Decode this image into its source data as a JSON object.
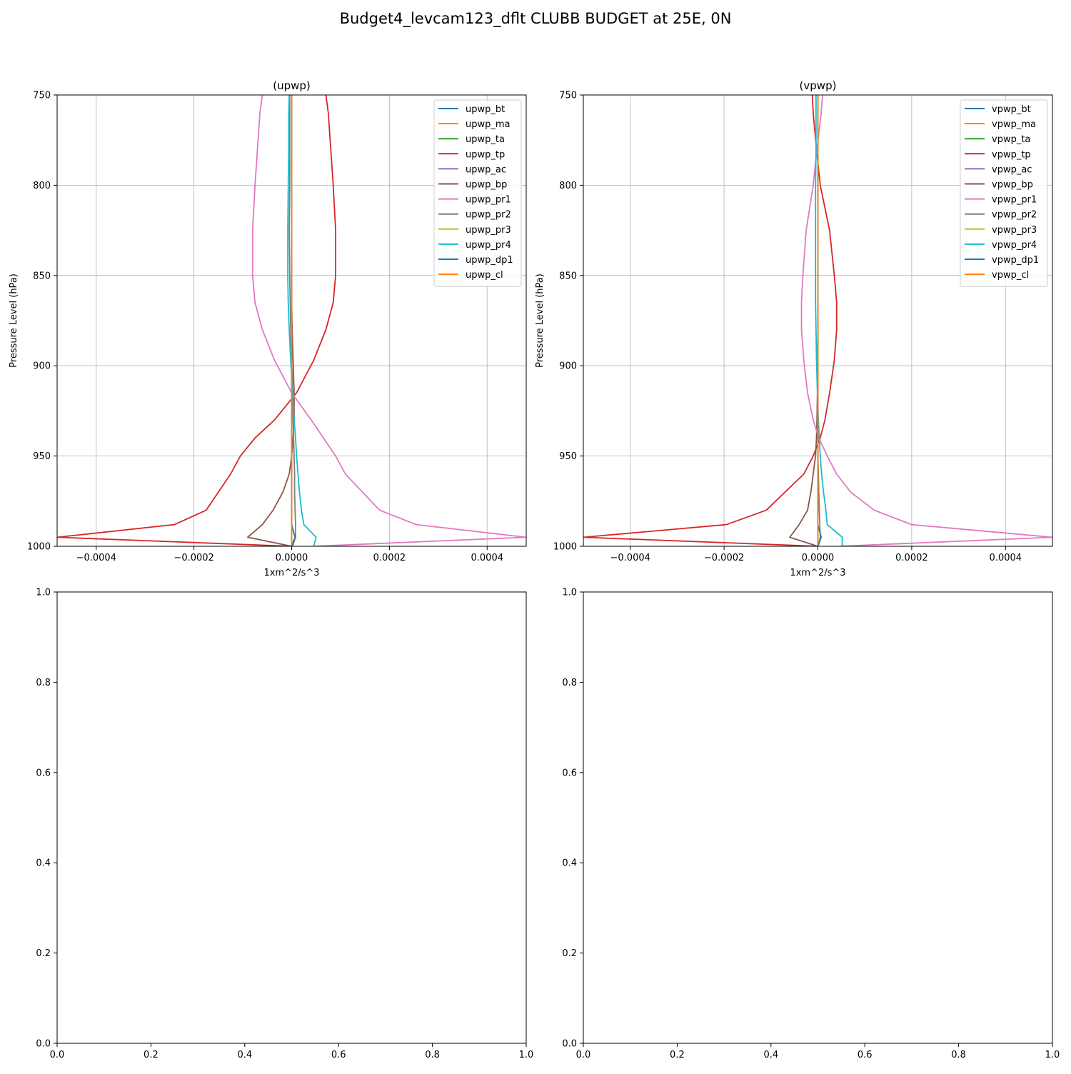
{
  "figure": {
    "suptitle": "Budget4_levcam123_dflt CLUBB BUDGET at 25E, 0N"
  },
  "chart_data": [
    {
      "type": "line",
      "title": "(upwp)",
      "xlabel": "1xm^2/s^3",
      "ylabel": "Pressure Level (hPa)",
      "xlim": [
        -0.00048,
        0.00048
      ],
      "ylim": [
        1000,
        750
      ],
      "y_inverted": true,
      "grid": true,
      "legend": "top-right",
      "xticks": [
        "−0.0004",
        "−0.0002",
        "0.0000",
        "0.0002",
        "0.0004"
      ],
      "xtick_values": [
        -0.0004,
        -0.0002,
        0,
        0.0002,
        0.0004
      ],
      "yticks": [
        "750",
        "800",
        "850",
        "900",
        "950",
        "1000"
      ],
      "ytick_values": [
        750,
        800,
        850,
        900,
        950,
        1000
      ],
      "levels": [
        750,
        760,
        780,
        800,
        825,
        850,
        865,
        880,
        897,
        915,
        930,
        940,
        950,
        960,
        970,
        980,
        988,
        995,
        1000
      ],
      "series": [
        {
          "name": "upwp_bt",
          "color": "#1f77b4",
          "values": [
            0,
            0,
            0,
            0,
            0,
            0,
            0,
            0,
            0,
            0,
            0,
            0,
            0,
            0,
            0,
            0,
            0,
            0,
            0
          ]
        },
        {
          "name": "upwp_ma",
          "color": "#ff7f0e",
          "values": [
            0,
            0,
            0,
            0,
            0,
            0,
            0,
            0,
            0,
            0,
            0,
            0,
            0,
            0,
            0,
            0,
            0,
            0,
            0
          ]
        },
        {
          "name": "upwp_ta",
          "color": "#2ca02c",
          "values": [
            0,
            0,
            0,
            0,
            0,
            0,
            0,
            0,
            0,
            0,
            0,
            0,
            0,
            0,
            0,
            0,
            0,
            0,
            0
          ]
        },
        {
          "name": "upwp_tp",
          "color": "#d62728",
          "values": [
            7e-05,
            7.5e-05,
            8e-05,
            8.5e-05,
            9e-05,
            9e-05,
            8.5e-05,
            7e-05,
            4.5e-05,
            1e-05,
            -3.5e-05,
            -7.5e-05,
            -0.000105,
            -0.000125,
            -0.00015,
            -0.000175,
            -0.00024,
            -0.00048,
            0
          ]
        },
        {
          "name": "upwp_ac",
          "color": "#9467bd",
          "values": [
            0,
            0,
            0,
            0,
            0,
            0,
            0,
            0,
            0,
            0,
            0,
            0,
            0,
            0,
            0,
            0,
            0,
            0,
            0
          ]
        },
        {
          "name": "upwp_bp",
          "color": "#8c564b",
          "values": [
            0,
            0,
            0,
            0,
            0,
            0,
            0,
            1e-06,
            3e-06,
            5e-06,
            5e-06,
            3e-06,
            0,
            -5e-06,
            -1.8e-05,
            -3.8e-05,
            -6e-05,
            -9e-05,
            0
          ]
        },
        {
          "name": "upwp_pr1",
          "color": "#e377c2",
          "values": [
            -6e-05,
            -6.5e-05,
            -7e-05,
            -7.5e-05,
            -8e-05,
            -8e-05,
            -7.5e-05,
            -6e-05,
            -3.5e-05,
            0,
            4e-05,
            6.5e-05,
            9e-05,
            0.00011,
            0.000145,
            0.00018,
            0.000255,
            0.00048,
            4.5e-05
          ]
        },
        {
          "name": "upwp_pr2",
          "color": "#7f7f7f",
          "values": [
            -4e-06,
            -4e-06,
            -4e-06,
            -4e-06,
            -5e-06,
            -4e-06,
            -3e-06,
            -2e-06,
            0,
            2e-06,
            3e-06,
            4e-06,
            5e-06,
            6e-06,
            6e-06,
            7e-06,
            8e-06,
            8e-06,
            2e-06
          ]
        },
        {
          "name": "upwp_pr3",
          "color": "#bcbd22",
          "values": [
            0,
            0,
            0,
            0,
            0,
            0,
            0,
            0,
            0,
            0,
            0,
            0,
            0,
            0,
            0,
            0,
            0,
            0,
            0
          ]
        },
        {
          "name": "upwp_pr4",
          "color": "#17becf",
          "values": [
            -5e-06,
            -6e-06,
            -6e-06,
            -7e-06,
            -8e-06,
            -8e-06,
            -7e-06,
            -5e-06,
            -2e-06,
            2e-06,
            5e-06,
            8e-06,
            1e-05,
            1.3e-05,
            1.6e-05,
            2e-05,
            2.5e-05,
            5e-05,
            4.5e-05
          ]
        },
        {
          "name": "upwp_dp1",
          "color": "#1f77b4",
          "values": [
            0,
            0,
            0,
            0,
            0,
            0,
            0,
            0,
            0,
            0,
            0,
            0,
            0,
            0,
            0,
            0,
            0,
            7e-06,
            0
          ]
        },
        {
          "name": "upwp_cl",
          "color": "#ff7f0e",
          "values": [
            0,
            0,
            0,
            0,
            0,
            0,
            0,
            0,
            0,
            0,
            0,
            0,
            0,
            0,
            0,
            0,
            0,
            0,
            0
          ]
        }
      ]
    },
    {
      "type": "line",
      "title": "(vpwp)",
      "xlabel": "1xm^2/s^3",
      "ylabel": "Pressure Level (hPa)",
      "xlim": [
        -0.0005,
        0.0005
      ],
      "ylim": [
        1000,
        750
      ],
      "y_inverted": true,
      "grid": true,
      "legend": "top-right",
      "xticks": [
        "−0.0004",
        "−0.0002",
        "0.0000",
        "0.0002",
        "0.0004"
      ],
      "xtick_values": [
        -0.0004,
        -0.0002,
        0,
        0.0002,
        0.0004
      ],
      "yticks": [
        "750",
        "800",
        "850",
        "900",
        "950",
        "1000"
      ],
      "ytick_values": [
        750,
        800,
        850,
        900,
        950,
        1000
      ],
      "levels": [
        750,
        760,
        780,
        800,
        825,
        850,
        865,
        880,
        897,
        915,
        930,
        940,
        950,
        960,
        970,
        980,
        988,
        995,
        1000
      ],
      "series": [
        {
          "name": "vpwp_bt",
          "color": "#1f77b4",
          "values": [
            0,
            0,
            0,
            0,
            0,
            0,
            0,
            0,
            0,
            0,
            0,
            0,
            0,
            0,
            0,
            0,
            0,
            0,
            0
          ]
        },
        {
          "name": "vpwp_ma",
          "color": "#ff7f0e",
          "values": [
            0,
            0,
            0,
            0,
            0,
            0,
            0,
            0,
            0,
            0,
            0,
            0,
            0,
            0,
            0,
            0,
            0,
            0,
            0
          ]
        },
        {
          "name": "vpwp_ta",
          "color": "#2ca02c",
          "values": [
            0,
            0,
            0,
            0,
            0,
            0,
            0,
            0,
            0,
            0,
            0,
            0,
            0,
            0,
            0,
            0,
            0,
            0,
            0
          ]
        },
        {
          "name": "vpwp_tp",
          "color": "#d62728",
          "values": [
            -1.2e-05,
            -1e-05,
            -3e-06,
            5e-06,
            2.5e-05,
            3.5e-05,
            4e-05,
            4e-05,
            3.5e-05,
            2.5e-05,
            1.5e-05,
            5e-06,
            -1e-05,
            -3e-05,
            -7e-05,
            -0.00011,
            -0.000195,
            -0.0005,
            0
          ]
        },
        {
          "name": "vpwp_ac",
          "color": "#9467bd",
          "values": [
            0,
            0,
            0,
            0,
            0,
            0,
            0,
            0,
            0,
            0,
            0,
            0,
            0,
            0,
            0,
            0,
            0,
            0,
            0
          ]
        },
        {
          "name": "vpwp_bp",
          "color": "#8c564b",
          "values": [
            0,
            0,
            0,
            0,
            0,
            0,
            0,
            0,
            -1e-06,
            -1e-06,
            -2e-06,
            -3e-06,
            -5e-06,
            -1e-05,
            -1.5e-05,
            -2.2e-05,
            -4e-05,
            -6e-05,
            0
          ]
        },
        {
          "name": "vpwp_pr1",
          "color": "#e377c2",
          "values": [
            1e-05,
            7e-06,
            -2e-06,
            -1e-05,
            -2.5e-05,
            -3.2e-05,
            -3.5e-05,
            -3.5e-05,
            -3e-05,
            -2.2e-05,
            -1e-05,
            2e-06,
            2e-05,
            4e-05,
            7e-05,
            0.00012,
            0.0002,
            0.0005,
            4.5e-05
          ]
        },
        {
          "name": "vpwp_pr2",
          "color": "#7f7f7f",
          "values": [
            0,
            0,
            0,
            0,
            0,
            0,
            0,
            0,
            0,
            0,
            0,
            0,
            0,
            1e-06,
            2e-06,
            3e-06,
            4e-06,
            5e-06,
            1e-06
          ]
        },
        {
          "name": "vpwp_pr3",
          "color": "#bcbd22",
          "values": [
            0,
            0,
            0,
            0,
            0,
            0,
            0,
            0,
            0,
            0,
            0,
            0,
            0,
            0,
            0,
            0,
            0,
            0,
            0
          ]
        },
        {
          "name": "vpwp_pr4",
          "color": "#17becf",
          "values": [
            -4e-06,
            -4e-06,
            -4e-06,
            -5e-06,
            -5e-06,
            -5e-06,
            -5e-06,
            -4e-06,
            -3e-06,
            -1e-06,
            1e-06,
            3e-06,
            5e-06,
            8e-06,
            1.2e-05,
            1.7e-05,
            2e-05,
            5.2e-05,
            5.2e-05
          ]
        },
        {
          "name": "vpwp_dp1",
          "color": "#1f77b4",
          "values": [
            0,
            0,
            0,
            0,
            0,
            0,
            0,
            0,
            0,
            0,
            0,
            0,
            0,
            0,
            0,
            0,
            0,
            7e-06,
            0
          ]
        },
        {
          "name": "vpwp_cl",
          "color": "#ff7f0e",
          "values": [
            0,
            0,
            0,
            0,
            0,
            0,
            0,
            0,
            0,
            0,
            0,
            0,
            0,
            0,
            0,
            0,
            0,
            0,
            0
          ]
        }
      ]
    },
    {
      "type": "line",
      "title": "",
      "xlim": [
        0,
        1
      ],
      "ylim": [
        0,
        1
      ],
      "xticks": [
        "0.0",
        "0.2",
        "0.4",
        "0.6",
        "0.8",
        "1.0"
      ],
      "xtick_values": [
        0,
        0.2,
        0.4,
        0.6,
        0.8,
        1.0
      ],
      "yticks": [
        "0.0",
        "0.2",
        "0.4",
        "0.6",
        "0.8",
        "1.0"
      ],
      "ytick_values": [
        0,
        0.2,
        0.4,
        0.6,
        0.8,
        1.0
      ],
      "grid": false,
      "series": []
    },
    {
      "type": "line",
      "title": "",
      "xlim": [
        0,
        1
      ],
      "ylim": [
        0,
        1
      ],
      "xticks": [
        "0.0",
        "0.2",
        "0.4",
        "0.6",
        "0.8",
        "1.0"
      ],
      "xtick_values": [
        0,
        0.2,
        0.4,
        0.6,
        0.8,
        1.0
      ],
      "yticks": [
        "0.0",
        "0.2",
        "0.4",
        "0.6",
        "0.8",
        "1.0"
      ],
      "ytick_values": [
        0,
        0.2,
        0.4,
        0.6,
        0.8,
        1.0
      ],
      "grid": false,
      "series": []
    }
  ]
}
